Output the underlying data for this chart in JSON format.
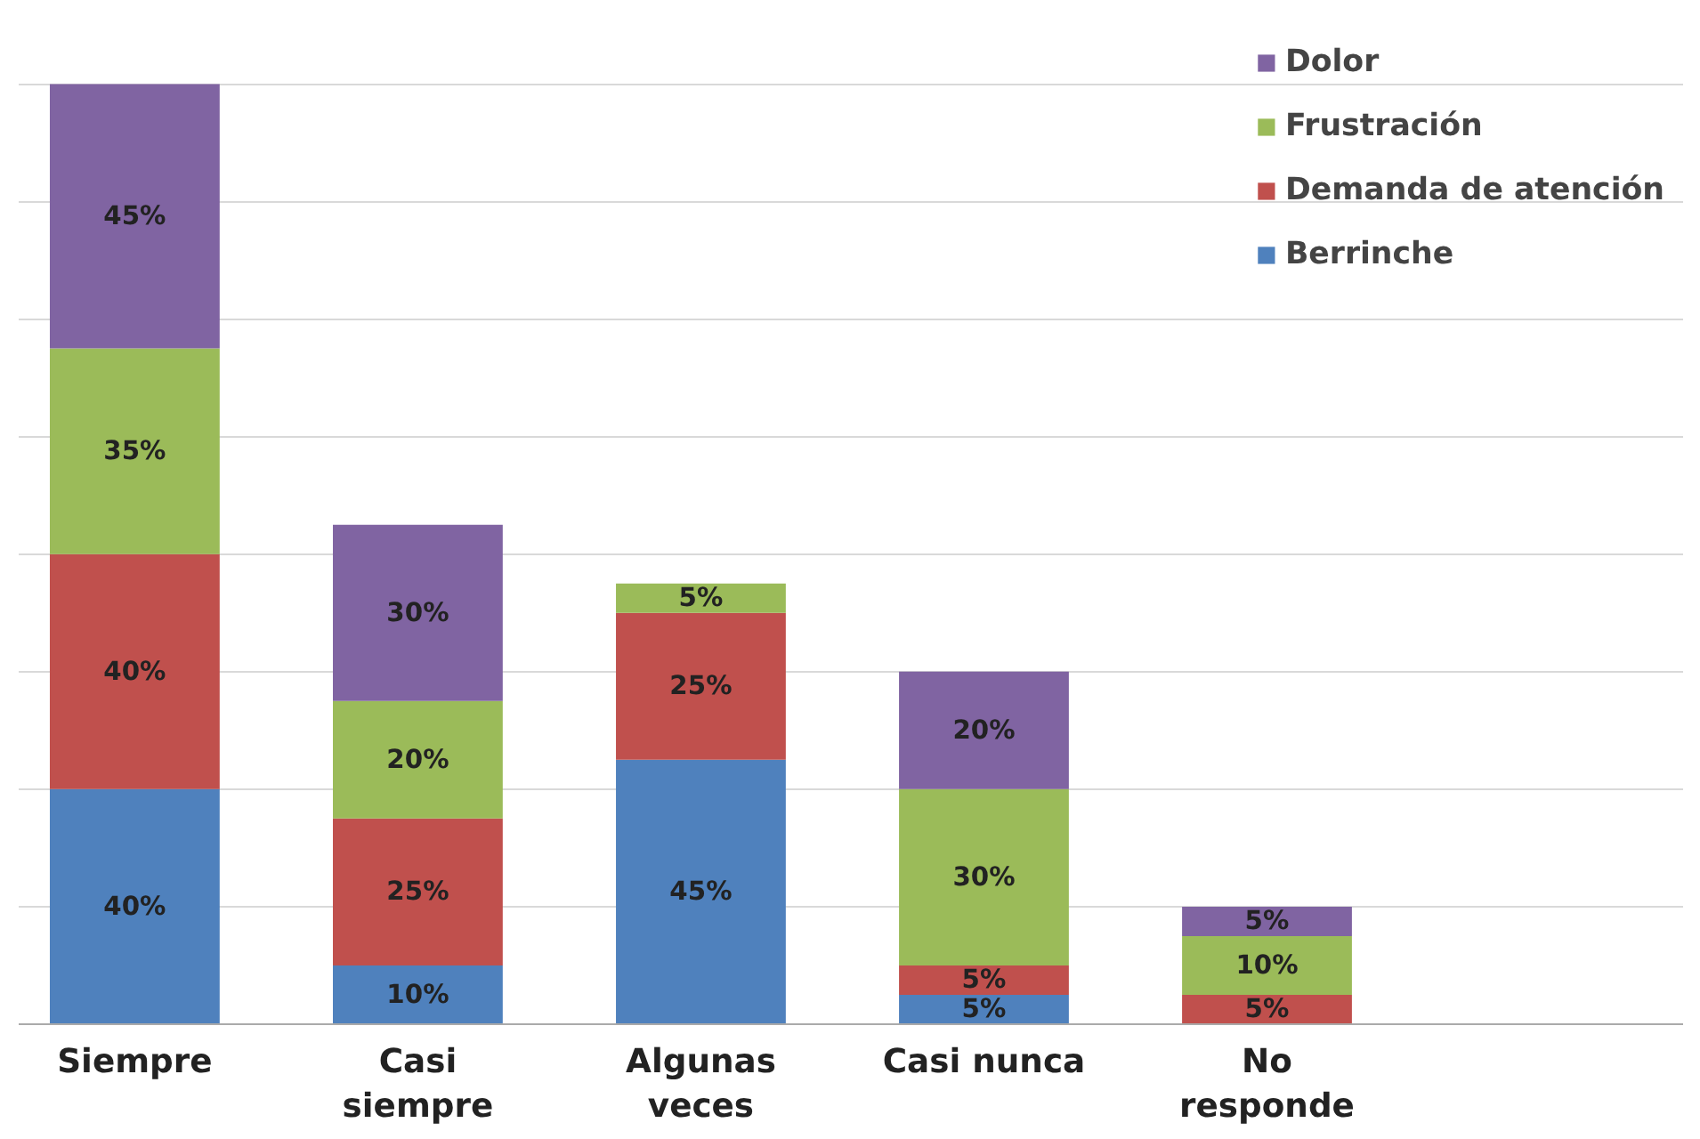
{
  "chart_data": {
    "type": "bar",
    "stacked": true,
    "categories": [
      "Siempre",
      "Casi\nsiempre",
      "Algunas\nveces",
      "Casi nunca",
      "No\nresponde"
    ],
    "series": [
      {
        "name": "Berrinche",
        "color": "#4f81bd",
        "values": [
          40,
          10,
          45,
          5,
          null
        ],
        "value_labels": [
          "40%",
          "10%",
          "45%",
          "5%",
          null
        ]
      },
      {
        "name": "Demanda de atención",
        "color": "#c0504d",
        "values": [
          40,
          25,
          25,
          5,
          5
        ],
        "value_labels": [
          "40%",
          "25%",
          "25%",
          "5%",
          "5%"
        ]
      },
      {
        "name": "Frustración",
        "color": "#9bbb59",
        "values": [
          35,
          20,
          5,
          30,
          10
        ],
        "value_labels": [
          "35%",
          "20%",
          "5%",
          "30%",
          "10%"
        ]
      },
      {
        "name": "Dolor",
        "color": "#8064a2",
        "values": [
          45,
          30,
          null,
          20,
          5
        ],
        "value_labels": [
          "45%",
          "30%",
          null,
          "20%",
          "5%"
        ]
      }
    ],
    "grid": "y",
    "legend": "top right",
    "tick_labels": "x"
  }
}
